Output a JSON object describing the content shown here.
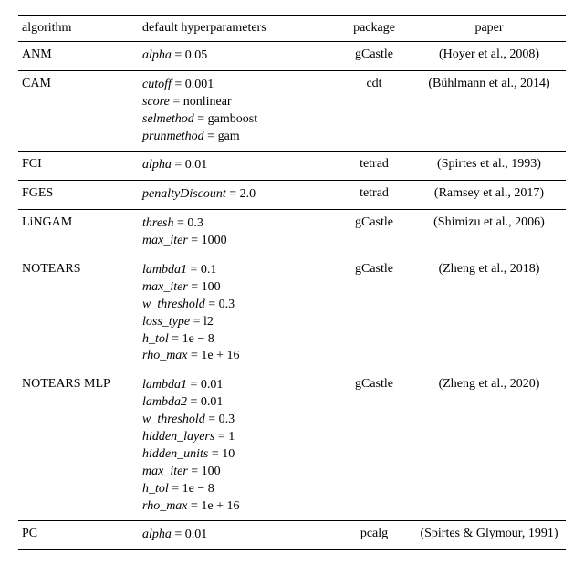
{
  "headers": {
    "algorithm": "algorithm",
    "hyperparams": "default hyperparameters",
    "package": "package",
    "paper": "paper"
  },
  "rows": [
    {
      "algorithm": "ANM",
      "hparams": [
        {
          "name": "alpha",
          "value": "0.05"
        }
      ],
      "package": "gCastle",
      "paper": "(Hoyer et al., 2008)"
    },
    {
      "algorithm": "CAM",
      "hparams": [
        {
          "name": "cutoff",
          "value": "0.001"
        },
        {
          "name": "score",
          "value": "nonlinear"
        },
        {
          "name": "selmethod",
          "value": "gamboost"
        },
        {
          "name": "prunmethod",
          "value": "gam"
        }
      ],
      "package": "cdt",
      "paper": "(Bühlmann et al., 2014)"
    },
    {
      "algorithm": "FCI",
      "hparams": [
        {
          "name": "alpha",
          "value": "0.01"
        }
      ],
      "package": "tetrad",
      "paper": "(Spirtes et al., 1993)"
    },
    {
      "algorithm": "FGES",
      "hparams": [
        {
          "name": "penaltyDiscount",
          "value": "2.0"
        }
      ],
      "package": "tetrad",
      "paper": "(Ramsey et al., 2017)"
    },
    {
      "algorithm": "LiNGAM",
      "hparams": [
        {
          "name": "thresh",
          "value": "0.3"
        },
        {
          "name": "max_iter",
          "value": "1000"
        }
      ],
      "package": "gCastle",
      "paper": "(Shimizu et al., 2006)"
    },
    {
      "algorithm": "NOTEARS",
      "hparams": [
        {
          "name": "lambda1",
          "value": "0.1"
        },
        {
          "name": "max_iter",
          "value": "100"
        },
        {
          "name": "w_threshold",
          "value": "0.3"
        },
        {
          "name": "loss_type",
          "value": "l2"
        },
        {
          "name": "h_tol",
          "value": "1e − 8"
        },
        {
          "name": "rho_max",
          "value": "1e + 16"
        }
      ],
      "package": "gCastle",
      "paper": "(Zheng et al., 2018)"
    },
    {
      "algorithm": "NOTEARS MLP",
      "hparams": [
        {
          "name": "lambda1",
          "value": "0.01"
        },
        {
          "name": "lambda2",
          "value": "0.01"
        },
        {
          "name": "w_threshold",
          "value": "0.3"
        },
        {
          "name": "hidden_layers",
          "value": "1"
        },
        {
          "name": "hidden_units",
          "value": "10"
        },
        {
          "name": "max_iter",
          "value": "100"
        },
        {
          "name": "h_tol",
          "value": "1e − 8"
        },
        {
          "name": "rho_max",
          "value": "1e + 16"
        }
      ],
      "package": "gCastle",
      "paper": "(Zheng et al., 2020)"
    },
    {
      "algorithm": "PC",
      "hparams": [
        {
          "name": "alpha",
          "value": "0.01"
        }
      ],
      "package": "pcalg",
      "paper": "(Spirtes & Glymour, 1991)"
    }
  ],
  "style": {
    "font_family": "Times New Roman",
    "font_size_pt": 11,
    "text_color": "#000000",
    "background_color": "#ffffff",
    "rule_color": "#000000",
    "col_widths": {
      "algorithm": "22%",
      "hyperparams": "36%",
      "package": "14%",
      "paper": "28%"
    }
  }
}
